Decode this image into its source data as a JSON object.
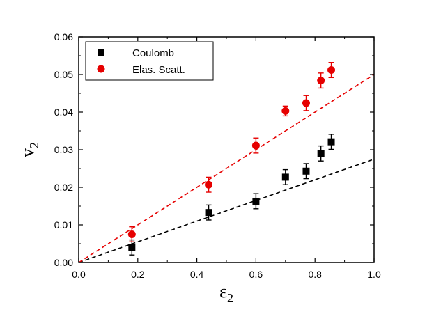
{
  "chart_data": {
    "type": "scatter",
    "xlabel": "ε",
    "xlabel_sub": "2",
    "ylabel": "v",
    "ylabel_sub": "2",
    "xlim": [
      0.0,
      1.0
    ],
    "ylim": [
      0.0,
      0.06
    ],
    "x_ticks": [
      "0.0",
      "0.2",
      "0.4",
      "0.6",
      "0.8",
      "1.0"
    ],
    "y_ticks": [
      "0.00",
      "0.01",
      "0.02",
      "0.03",
      "0.04",
      "0.05",
      "0.06"
    ],
    "legend_position": "top-left",
    "series": [
      {
        "name": "Coulomb",
        "marker": "square",
        "color": "#000000",
        "points": [
          {
            "x": 0.18,
            "y": 0.004,
            "err": 0.002
          },
          {
            "x": 0.44,
            "y": 0.0133,
            "err": 0.002
          },
          {
            "x": 0.6,
            "y": 0.0163,
            "err": 0.002
          },
          {
            "x": 0.7,
            "y": 0.0227,
            "err": 0.002
          },
          {
            "x": 0.77,
            "y": 0.0243,
            "err": 0.002
          },
          {
            "x": 0.82,
            "y": 0.029,
            "err": 0.002
          },
          {
            "x": 0.855,
            "y": 0.0321,
            "err": 0.002
          }
        ],
        "fit_slope": 0.0275
      },
      {
        "name": "Elas. Scatt.",
        "marker": "circle",
        "color": "#e60000",
        "points": [
          {
            "x": 0.18,
            "y": 0.0075,
            "err": 0.002
          },
          {
            "x": 0.44,
            "y": 0.0207,
            "err": 0.002
          },
          {
            "x": 0.6,
            "y": 0.0311,
            "err": 0.002
          },
          {
            "x": 0.7,
            "y": 0.0403,
            "err": 0.0013
          },
          {
            "x": 0.77,
            "y": 0.0424,
            "err": 0.002
          },
          {
            "x": 0.82,
            "y": 0.0484,
            "err": 0.002
          },
          {
            "x": 0.855,
            "y": 0.0512,
            "err": 0.002
          }
        ],
        "fit_slope": 0.05
      }
    ]
  }
}
